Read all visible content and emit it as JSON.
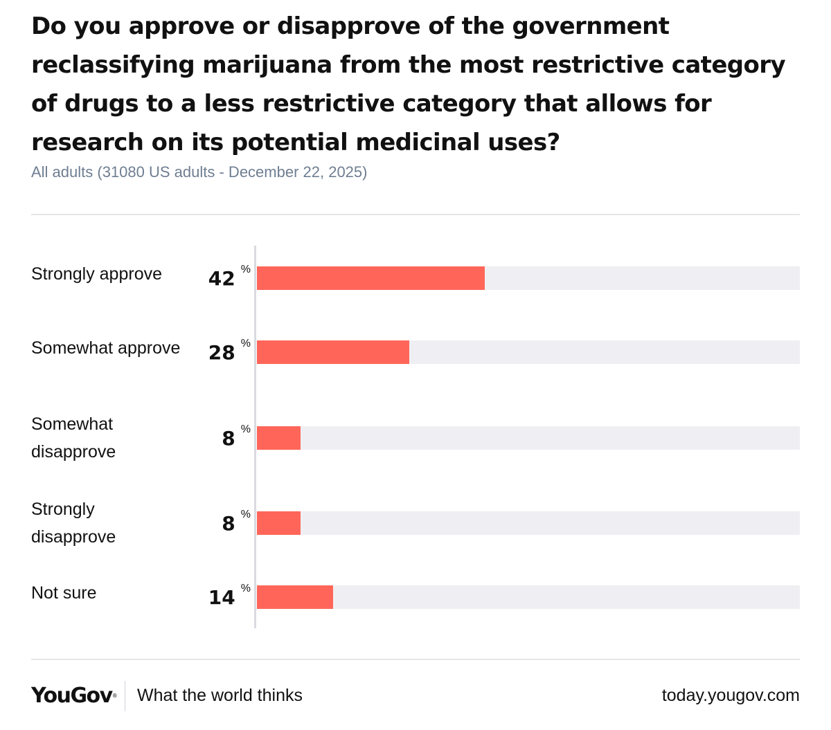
{
  "title": "Do you approve or disapprove of the government reclassifying marijuana from the most restrictive category of drugs to a less restrictive category that allows for research on its potential medicinal uses?",
  "subtitle": "All adults (31080 US adults - December 22, 2025)",
  "chart_data": {
    "type": "bar",
    "orientation": "horizontal",
    "title": "Do you approve or disapprove of the government reclassifying marijuana from the most restrictive category of drugs to a less restrictive category that allows for research on its potential medicinal uses?",
    "subtitle": "All adults (31080 US adults - December 22, 2025)",
    "categories": [
      "Strongly approve",
      "Somewhat approve",
      "Somewhat disapprove",
      "Strongly disapprove",
      "Not sure"
    ],
    "values": [
      42,
      28,
      8,
      8,
      14
    ],
    "value_suffix": "%",
    "xlim": [
      0,
      100
    ],
    "xlabel": "",
    "ylabel": "",
    "grid": false,
    "legend": "none",
    "colors": {
      "bar": "#ff6659",
      "track": "#efeff3"
    }
  },
  "footer": {
    "brand": "YouGov",
    "tagline": "What the world thinks",
    "url": "today.yougov.com"
  }
}
